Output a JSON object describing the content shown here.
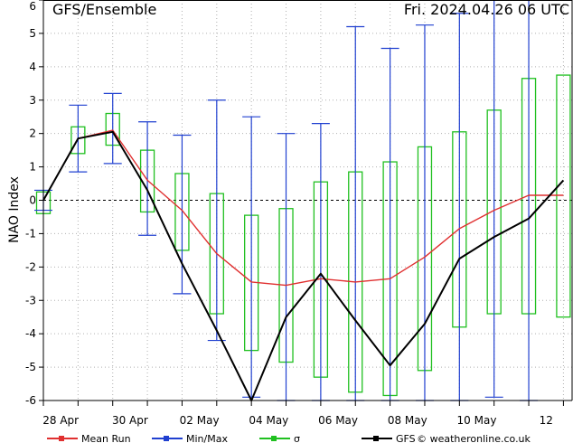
{
  "header": {
    "title": "GFS/Ensemble",
    "run": "Fri. 2024.04.26   06 UTC"
  },
  "footer": {
    "credit": "© weatheronline.co.uk"
  },
  "colors": {
    "mean": "#e03030",
    "minmax": "#2040d0",
    "sigma": "#20c020",
    "gfs": "#000000",
    "grid": "#b0b0b0"
  },
  "chart_data": {
    "type": "line",
    "ylabel": "NAO Index",
    "ylim": [
      -6,
      6
    ],
    "yticks": [
      -6,
      -5,
      -4,
      -3,
      -2,
      -1,
      0,
      1,
      2,
      3,
      4,
      5,
      6
    ],
    "xlim": [
      0,
      15.25
    ],
    "xticks": [
      {
        "day": 0.5,
        "label": "28 Apr"
      },
      {
        "day": 2.5,
        "label": "30 Apr"
      },
      {
        "day": 4.5,
        "label": "02 May"
      },
      {
        "day": 6.5,
        "label": "04 May"
      },
      {
        "day": 8.5,
        "label": "06 May"
      },
      {
        "day": 10.5,
        "label": "08 May"
      },
      {
        "day": 12.5,
        "label": "10 May"
      },
      {
        "day": 14.5,
        "label": "12"
      }
    ],
    "x": [
      0,
      1,
      2,
      3,
      4,
      5,
      6,
      7,
      8,
      9,
      10,
      11,
      12,
      13,
      14,
      15
    ],
    "legend": [
      {
        "key": "mean",
        "label": "Mean Run"
      },
      {
        "key": "minmax",
        "label": "Min/Max"
      },
      {
        "key": "sigma",
        "label": "σ"
      },
      {
        "key": "gfs",
        "label": "GFS"
      }
    ],
    "series": [
      {
        "name": "Mean Run",
        "key": "mean",
        "values": [
          0,
          1.85,
          2.1,
          0.6,
          -0.3,
          -1.6,
          -2.45,
          -2.55,
          -2.35,
          -2.45,
          -2.35,
          -1.7,
          -0.85,
          -0.3,
          0.15,
          0.15
        ]
      },
      {
        "name": "GFS",
        "key": "gfs",
        "values": [
          0,
          1.85,
          2.05,
          0.3,
          -1.9,
          -3.9,
          -6.0,
          -3.5,
          -2.2,
          -3.6,
          -4.95,
          -3.7,
          -1.75,
          -1.1,
          -0.55,
          0.6
        ]
      }
    ],
    "minmax": [
      {
        "x": 0,
        "min": -0.3,
        "max": 0.3
      },
      {
        "x": 1,
        "min": 0.85,
        "max": 2.85
      },
      {
        "x": 2,
        "min": 1.1,
        "max": 3.2
      },
      {
        "x": 3,
        "min": -1.05,
        "max": 2.35
      },
      {
        "x": 4,
        "min": -2.8,
        "max": 1.95
      },
      {
        "x": 5,
        "min": -4.2,
        "max": 3.0
      },
      {
        "x": 6,
        "min": -5.9,
        "max": 2.5
      },
      {
        "x": 7,
        "min": -6.0,
        "max": 2.0
      },
      {
        "x": 8,
        "min": -6.0,
        "max": 2.3
      },
      {
        "x": 9,
        "min": -6.0,
        "max": 5.2
      },
      {
        "x": 10,
        "min": -6.0,
        "max": 4.55
      },
      {
        "x": 11,
        "min": -6.0,
        "max": 5.25
      },
      {
        "x": 12,
        "min": -6.0,
        "max": 5.6
      },
      {
        "x": 13,
        "min": -5.9,
        "max": 6.0
      },
      {
        "x": 14,
        "min": -6.0,
        "max": 6.0
      }
    ],
    "sigma": [
      {
        "x": 0,
        "low": -0.4,
        "high": 0.25
      },
      {
        "x": 1,
        "low": 1.4,
        "high": 2.2
      },
      {
        "x": 2,
        "low": 1.65,
        "high": 2.6
      },
      {
        "x": 3,
        "low": -0.35,
        "high": 1.5
      },
      {
        "x": 4,
        "low": -1.5,
        "high": 0.8
      },
      {
        "x": 5,
        "low": -3.4,
        "high": 0.2
      },
      {
        "x": 6,
        "low": -4.5,
        "high": -0.45
      },
      {
        "x": 7,
        "low": -4.85,
        "high": -0.25
      },
      {
        "x": 8,
        "low": -5.3,
        "high": 0.55
      },
      {
        "x": 9,
        "low": -5.75,
        "high": 0.85
      },
      {
        "x": 10,
        "low": -5.85,
        "high": 1.15
      },
      {
        "x": 11,
        "low": -5.1,
        "high": 1.6
      },
      {
        "x": 12,
        "low": -3.8,
        "high": 2.05
      },
      {
        "x": 13,
        "low": -3.4,
        "high": 2.7
      },
      {
        "x": 14,
        "low": -3.4,
        "high": 3.65
      },
      {
        "x": 15,
        "low": -3.5,
        "high": 3.75
      }
    ]
  }
}
